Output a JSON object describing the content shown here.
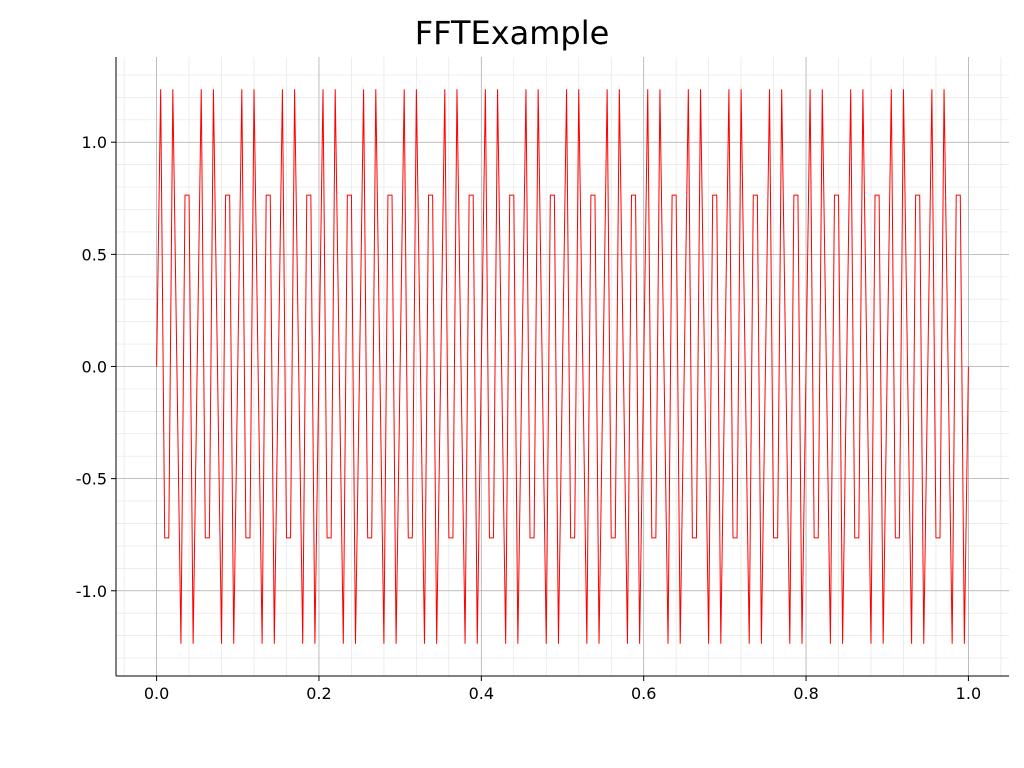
{
  "chart_data": {
    "type": "line",
    "title": "FFTExample",
    "xlabel": "",
    "ylabel": "",
    "xlim": [
      -0.05,
      1.05
    ],
    "ylim": [
      -1.38,
      1.38
    ],
    "x_ticks": [
      "0.0",
      "0.2",
      "0.4",
      "0.6",
      "0.8",
      "1.0"
    ],
    "y_ticks": [
      "1.0",
      "0.5",
      "0.0",
      "-0.5",
      "-1.0"
    ],
    "grid": true,
    "minor_grid": true,
    "legend": false,
    "series": [
      {
        "color": "#ff0000",
        "x_start": 0.0,
        "x_end": 1.0,
        "sample_count": 201,
        "sample_interval": 0.005,
        "values_cycle": [
          0.0,
          1.2364,
          -0.7641,
          -0.7641,
          1.2364,
          0.0,
          -1.2364,
          0.7641,
          0.7641,
          -1.2364
        ]
      }
    ]
  }
}
